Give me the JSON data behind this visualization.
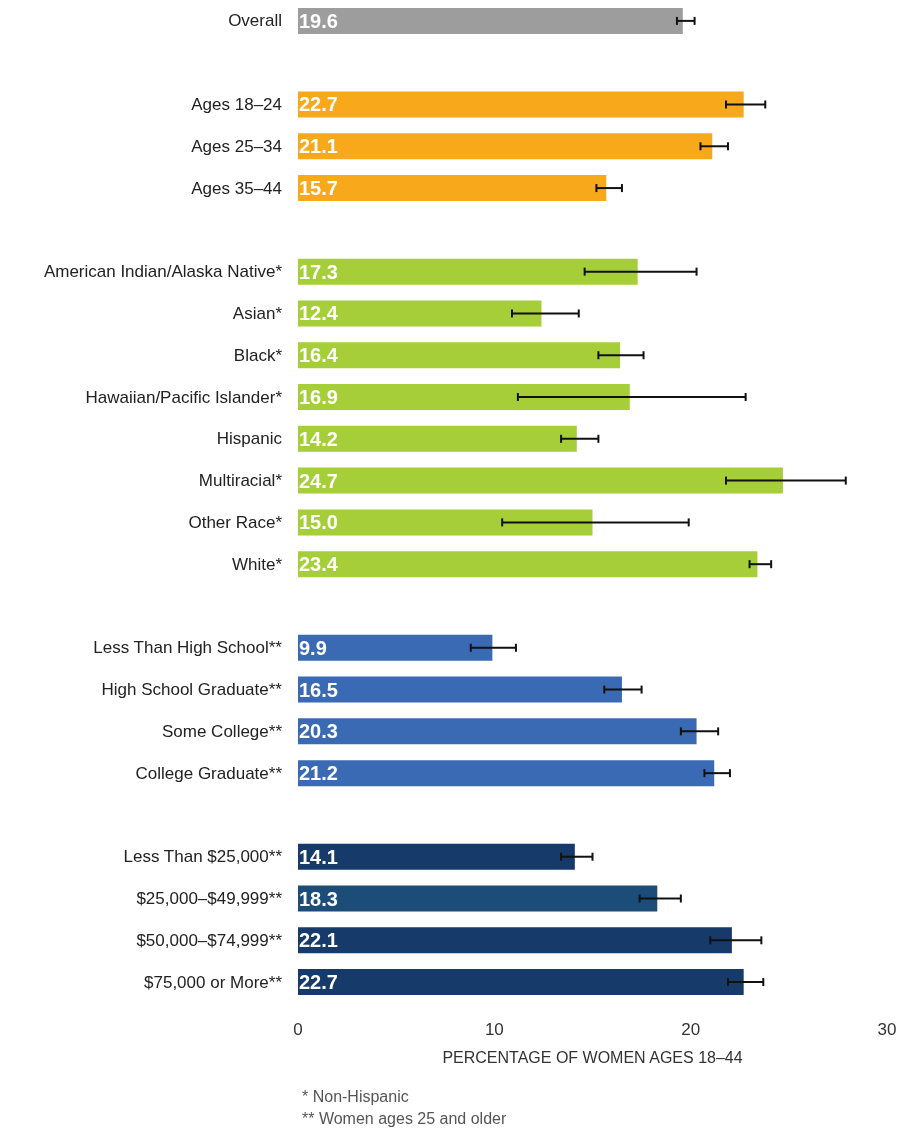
{
  "chart_data": {
    "type": "bar",
    "orientation": "horizontal",
    "xlabel": "PERCENTAGE OF WOMEN AGES 18–44",
    "categories": [
      "Overall",
      null,
      "Ages 18–24",
      "Ages 25–34",
      "Ages 35–44",
      null,
      "American Indian/Alaska Native*",
      "Asian*",
      "Black*",
      "Hawaiian/Pacific Islander*",
      "Hispanic",
      "Multiracial*",
      "Other Race*",
      "White*",
      null,
      "Less Than High School**",
      "High School Graduate**",
      "Some College**",
      "College Graduate**",
      null,
      "Less Than $25,000**",
      "$25,000–$49,999**",
      "$50,000–$74,999**",
      "$75,000 or More**"
    ],
    "values": [
      19.6,
      null,
      22.7,
      21.1,
      15.7,
      null,
      17.3,
      12.4,
      16.4,
      16.9,
      14.2,
      24.7,
      15.0,
      23.4,
      null,
      9.9,
      16.5,
      20.3,
      21.2,
      null,
      14.1,
      18.3,
      22.1,
      22.7
    ],
    "value_labels": [
      "19.6",
      null,
      "22.7",
      "21.1",
      "15.7",
      null,
      "17.3",
      "12.4",
      "16.4",
      "16.9",
      "14.2",
      "24.7",
      "15.0",
      "23.4",
      null,
      "9.9",
      "16.5",
      "20.3",
      "21.2",
      null,
      "14.1",
      "18.3",
      "22.1",
      "22.7"
    ],
    "errors": [
      [
        19.3,
        20.2
      ],
      null,
      [
        21.8,
        23.8
      ],
      [
        20.5,
        21.9
      ],
      [
        15.2,
        16.5
      ],
      null,
      [
        14.6,
        20.3
      ],
      [
        10.9,
        14.3
      ],
      [
        15.3,
        17.6
      ],
      [
        11.2,
        22.8
      ],
      [
        13.4,
        15.3
      ],
      [
        21.8,
        27.9
      ],
      [
        10.4,
        19.9
      ],
      [
        23.0,
        24.1
      ],
      null,
      [
        8.8,
        11.1
      ],
      [
        15.6,
        17.5
      ],
      [
        19.5,
        21.4
      ],
      [
        20.7,
        22.0
      ],
      null,
      [
        13.4,
        15.0
      ],
      [
        17.4,
        19.5
      ],
      [
        21.0,
        23.6
      ],
      [
        21.9,
        23.7
      ]
    ],
    "colors": [
      "#9d9d9d",
      null,
      "#f7a81b",
      "#f7a81b",
      "#f7a81b",
      null,
      "#a6ce39",
      "#a6ce39",
      "#a6ce39",
      "#a6ce39",
      "#a6ce39",
      "#a6ce39",
      "#a6ce39",
      "#a6ce39",
      null,
      "#3a6ab4",
      "#3a6ab4",
      "#3a6ab4",
      "#3a6ab4",
      null,
      "#163a6a",
      "#1c4d78",
      "#163a6a",
      "#163a6a"
    ],
    "xlim": [
      0,
      30
    ],
    "xticks": [
      0,
      10,
      20,
      30
    ],
    "grid": false,
    "annotations": [
      "* Non-Hispanic",
      "** Women ages 25 and older"
    ]
  }
}
